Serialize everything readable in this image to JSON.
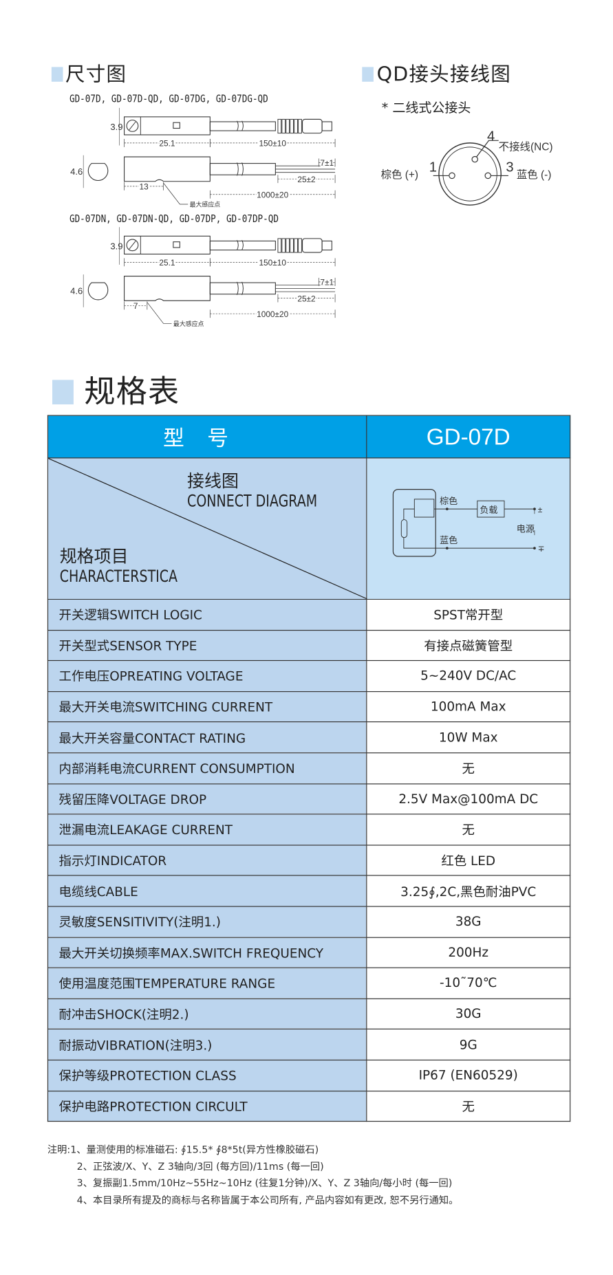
{
  "dimensions": {
    "title": "尺寸图",
    "group1_models": "GD-07D, GD-07D-QD, GD-07DG, GD-07DG-QD",
    "group2_models": "GD-07DN, GD-07DN-QD, GD-07DP, GD-07DP-QD",
    "height_dim": "3.9",
    "width_dim": "4.6",
    "body_length": "25.1",
    "cable_length_qd": "150±10",
    "strip_length": "7±1",
    "wire_length": "25±2",
    "cable_length": "1000±20",
    "sensing_point_group1": "13",
    "sensing_point_group2": "7",
    "sensing_point_label": "最大感应点"
  },
  "qd_wiring": {
    "title": "QD接头接线图",
    "subtitle": "* 二线式公接头",
    "pin1": "1",
    "pin1_label": "棕色 (+)",
    "pin3": "3",
    "pin3_label": "蓝色 (-)",
    "pin4": "4",
    "pin4_label": "不接线(NC)"
  },
  "spec": {
    "title": "规格表",
    "header_left": "型号",
    "header_right": "GD-07D",
    "diagram_label_cn": "接线图",
    "diagram_label_en": "CONNECT DIAGRAM",
    "items_label_cn": "规格项目",
    "items_label_en": "CHARACTERSTICA",
    "circuit": {
      "brown": "棕色",
      "blue": "蓝色",
      "load": "负载",
      "power": "电源",
      "plus": "±",
      "minus": "∓"
    },
    "rows": [
      {
        "label": "开关逻辑SWITCH LOGIC",
        "value": "SPST常开型"
      },
      {
        "label": "开关型式SENSOR TYPE",
        "value": "有接点磁簧管型"
      },
      {
        "label": "工作电压OPREATING VOLTAGE",
        "value": "5~240V DC/AC"
      },
      {
        "label": "最大开关电流SWITCHING CURRENT",
        "value": "100mA Max"
      },
      {
        "label": "最大开关容量CONTACT RATING",
        "value": "10W Max"
      },
      {
        "label": "内部消耗电流CURRENT CONSUMPTION",
        "value": "无"
      },
      {
        "label": "残留压降VOLTAGE DROP",
        "value": "2.5V Max@100mA DC"
      },
      {
        "label": "泄漏电流LEAKAGE CURRENT",
        "value": "无"
      },
      {
        "label": "指示灯INDICATOR",
        "value": "红色  LED"
      },
      {
        "label": "电缆线CABLE",
        "value": "3.25∮,2C,黑色耐油PVC"
      },
      {
        "label": "灵敏度SENSITIVITY(注明1.)",
        "value": "38G"
      },
      {
        "label": "最大开关切换频率MAX.SWITCH FREQUENCY",
        "value": "200Hz"
      },
      {
        "label": "使用温度范围TEMPERATURE RANGE",
        "value": "-10˜70℃"
      },
      {
        "label": "耐冲击SHOCK(注明2.)",
        "value": "30G"
      },
      {
        "label": "耐振动VIBRATION(注明3.)",
        "value": "9G"
      },
      {
        "label": "保护等级PROTECTION CLASS",
        "value": "IP67 (EN60529)"
      },
      {
        "label": "保护电路PROTECTION CIRCULT",
        "value": "无"
      }
    ]
  },
  "notes": [
    "注明:1、量测使用的标准磁石: ∮15.5* ∮8*5t(异方性橡胶磁石)",
    "2、正弦波/X、Y、Z 3轴向/3回 (每方回)/11ms (每一回)",
    "3、复振副1.5mm/10Hz~55Hz~10Hz (往复1分钟)/X、Y、Z 3轴向/每小时 (每一回)",
    "4、本目录所有提及的商标与名称皆属于本公司所有, 产品内容如有更改, 恕不另行通知。"
  ],
  "colors": {
    "header_blue": "#00a0e6",
    "label_cell": "#bcd5ee",
    "diagram_cell": "#c5e1f6",
    "heading_square": "#c3dcf2"
  }
}
